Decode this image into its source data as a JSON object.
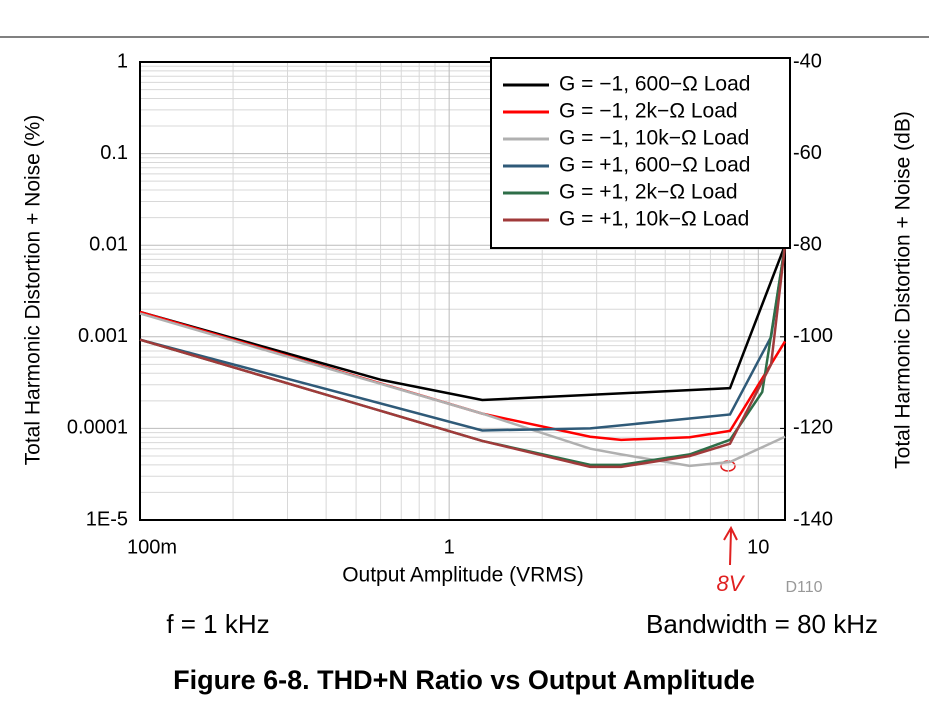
{
  "chart_data": {
    "type": "line",
    "y_label": "Total Harmonic Distortion + Noise (%)",
    "y2_label": "Total Harmonic Distortion + Noise (dB)",
    "x_label": "Output Amplitude (VRMS)",
    "code": "D110",
    "annotations": [
      "f = 1 kHz",
      "Bandwidth = 80 kHz"
    ],
    "handwritten_note": "8V",
    "caption": "Figure 6-8. THD+N Ratio vs Output Amplitude",
    "xscale": "log",
    "yscale": "log",
    "grid": true,
    "legend": "upper right",
    "xlim": [
      0.1,
      12.2
    ],
    "xticks": [
      {
        "value": 0.1,
        "label": "100m"
      },
      1,
      10
    ],
    "ylim": [
      1e-05,
      1
    ],
    "yticks": [
      1,
      0.1,
      0.01,
      0.001,
      0.0001,
      {
        "value": 1e-05,
        "label": "1E-5"
      }
    ],
    "y2lim": [
      -140,
      -40
    ],
    "y2ticks": [
      -40,
      -60,
      -80,
      -100,
      -120,
      -140
    ],
    "series": [
      {
        "name": "G = −1, 600−Ω Load",
        "color": "#000000",
        "x": [
          0.1,
          0.6,
          1.28,
          8.1,
          12.2
        ],
        "values": [
          0.00187,
          0.00034,
          0.000204,
          0.000275,
          0.01
        ]
      },
      {
        "name": "G = −1, 2k−Ω Load",
        "color": "#ff0000",
        "x": [
          0.1,
          1.28,
          2.86,
          3.6,
          6,
          8.1,
          12.2
        ],
        "values": [
          0.00187,
          0.000145,
          8.1e-05,
          7.5e-05,
          8e-05,
          9.4e-05,
          0.00089
        ]
      },
      {
        "name": "G = −1, 10k−Ω Load",
        "color": "#b0b0b0",
        "x": [
          0.1,
          1.28,
          2.86,
          3.6,
          6,
          8.1,
          12.2
        ],
        "values": [
          0.0018,
          0.000145,
          6e-05,
          5.2e-05,
          3.9e-05,
          4.3e-05,
          8.1e-05
        ]
      },
      {
        "name": "G = +1, 600−Ω Load",
        "color": "#2f5a78",
        "x": [
          0.1,
          1.28,
          2.86,
          8.1,
          11,
          12.2
        ],
        "values": [
          0.00093,
          9.5e-05,
          0.0001,
          0.000142,
          0.001,
          0.01
        ]
      },
      {
        "name": "G = +1, 2k−Ω Load",
        "color": "#2e6e48",
        "x": [
          0.1,
          1.28,
          2.86,
          3.6,
          6,
          8.1,
          10.3,
          12.2
        ],
        "values": [
          0.00093,
          7.3e-05,
          4e-05,
          4e-05,
          5.2e-05,
          7.5e-05,
          0.00025,
          0.01
        ]
      },
      {
        "name": "G = +1, 10k−Ω Load",
        "color": "#a03a3a",
        "x": [
          0.1,
          1.28,
          2.86,
          3.6,
          6,
          8.1,
          11,
          12.2
        ],
        "values": [
          0.00093,
          7.3e-05,
          3.8e-05,
          3.8e-05,
          5e-05,
          6.8e-05,
          0.0005,
          0.01
        ]
      }
    ]
  }
}
